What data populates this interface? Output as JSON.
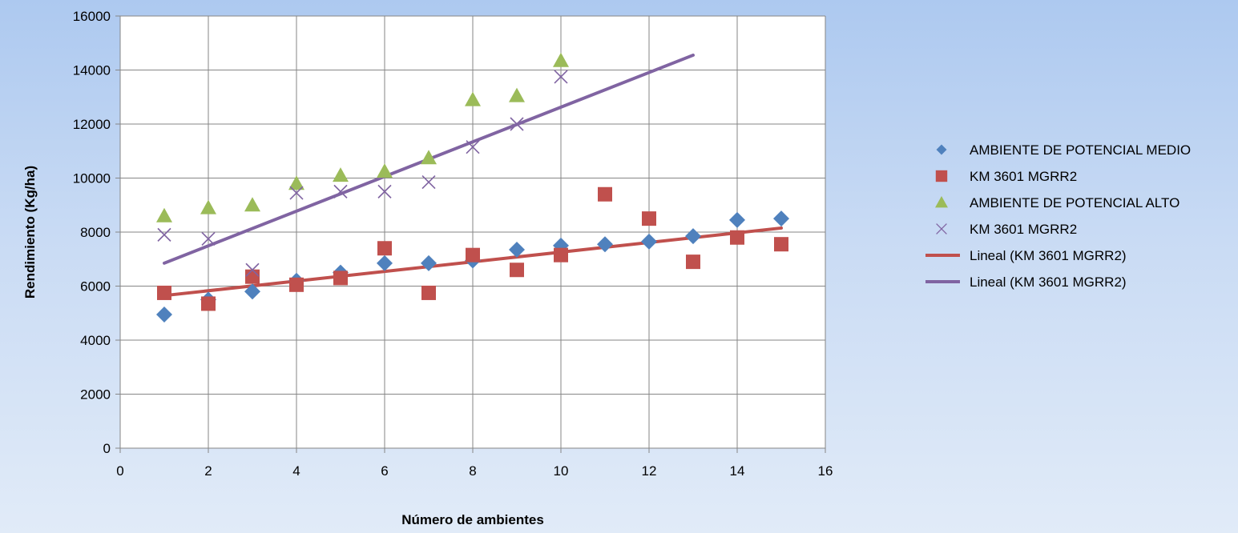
{
  "chart_data": {
    "type": "scatter",
    "title": "",
    "xlabel": "Número de ambientes",
    "ylabel": "Rendimiento (Kg/ha)",
    "xlim": [
      0,
      16
    ],
    "ylim": [
      0,
      16000
    ],
    "x_ticks": [
      "0",
      "2",
      "4",
      "6",
      "8",
      "10",
      "12",
      "14",
      "16"
    ],
    "y_ticks": [
      "0",
      "2000",
      "4000",
      "6000",
      "8000",
      "10000",
      "12000",
      "14000",
      "16000"
    ],
    "grid": true,
    "legend_position": "right",
    "colors": {
      "medio": "#4f81bd",
      "km_red": "#c0504d",
      "alto": "#9bbb59",
      "km_purple": "#8064a2",
      "plot_bg": "#ffffff",
      "grid": "#868686"
    },
    "series": [
      {
        "name": "AMBIENTE DE POTENCIAL MEDIO",
        "marker": "diamond",
        "points": [
          [
            1,
            4950
          ],
          [
            2,
            5500
          ],
          [
            3,
            5800
          ],
          [
            4,
            6200
          ],
          [
            5,
            6500
          ],
          [
            6,
            6850
          ],
          [
            7,
            6850
          ],
          [
            8,
            6950
          ],
          [
            9,
            7350
          ],
          [
            10,
            7500
          ],
          [
            11,
            7550
          ],
          [
            12,
            7650
          ],
          [
            13,
            7850
          ],
          [
            14,
            8450
          ],
          [
            15,
            8500
          ]
        ]
      },
      {
        "name": "KM 3601 MGRR2",
        "marker": "square",
        "points": [
          [
            1,
            5750
          ],
          [
            2,
            5350
          ],
          [
            3,
            6350
          ],
          [
            4,
            6050
          ],
          [
            5,
            6300
          ],
          [
            6,
            7400
          ],
          [
            7,
            5750
          ],
          [
            8,
            7150
          ],
          [
            9,
            6600
          ],
          [
            10,
            7150
          ],
          [
            11,
            9400
          ],
          [
            12,
            8500
          ],
          [
            13,
            6900
          ],
          [
            14,
            7800
          ],
          [
            15,
            7550
          ]
        ]
      },
      {
        "name": "AMBIENTE DE POTENCIAL ALTO",
        "marker": "triangle",
        "points": [
          [
            1,
            8600
          ],
          [
            2,
            8900
          ],
          [
            3,
            9000
          ],
          [
            4,
            9800
          ],
          [
            5,
            10100
          ],
          [
            6,
            10250
          ],
          [
            7,
            10750
          ],
          [
            8,
            12900
          ],
          [
            9,
            13050
          ],
          [
            10,
            14350
          ]
        ]
      },
      {
        "name": "KM 3601 MGRR2",
        "marker": "x",
        "points": [
          [
            1,
            7900
          ],
          [
            2,
            7750
          ],
          [
            3,
            6600
          ],
          [
            4,
            9450
          ],
          [
            5,
            9500
          ],
          [
            6,
            9500
          ],
          [
            7,
            9850
          ],
          [
            8,
            11150
          ],
          [
            9,
            12000
          ],
          [
            10,
            13750
          ]
        ]
      },
      {
        "name": "Lineal (KM 3601 MGRR2)",
        "marker": "line",
        "points": [
          [
            1,
            5650
          ],
          [
            15,
            8150
          ]
        ]
      },
      {
        "name": "Lineal (KM 3601 MGRR2)",
        "marker": "line",
        "points": [
          [
            1,
            6850
          ],
          [
            13,
            14550
          ]
        ]
      }
    ]
  }
}
